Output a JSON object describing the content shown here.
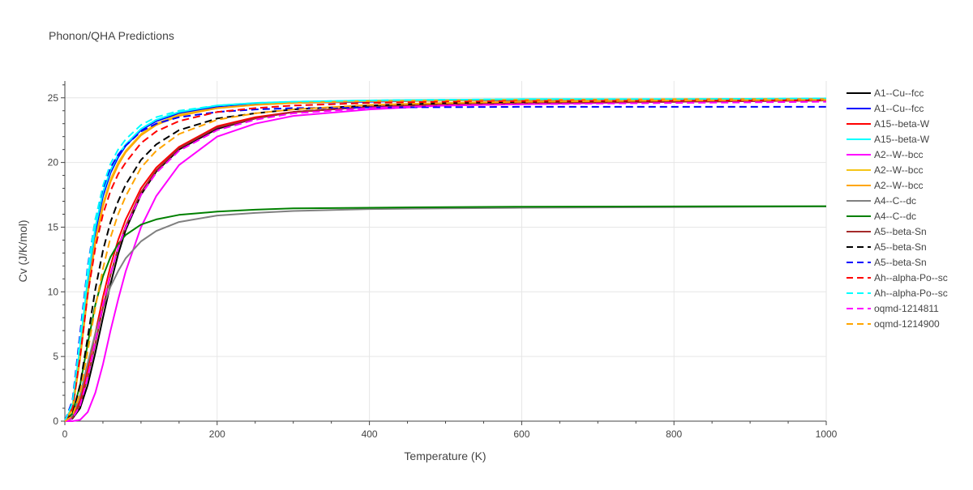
{
  "chart_data": {
    "type": "line",
    "title": "Phonon/QHA Predictions",
    "xlabel": "Temperature (K)",
    "ylabel": "Cv (J/K/mol)",
    "xlim": [
      0,
      1000
    ],
    "ylim": [
      0,
      26.3
    ],
    "xticks": [
      0,
      200,
      400,
      600,
      800,
      1000
    ],
    "yticks": [
      0,
      5,
      10,
      15,
      20,
      25
    ],
    "grid": true,
    "legend_position": "right",
    "series": [
      {
        "name": "A1--Cu--fcc",
        "color": "#000000",
        "dash": "solid",
        "x": [
          0,
          10,
          20,
          30,
          40,
          50,
          60,
          70,
          80,
          100,
          120,
          150,
          200,
          250,
          300,
          400,
          500,
          600,
          800,
          1000
        ],
        "y": [
          0,
          0.2,
          1.0,
          2.8,
          5.3,
          8.0,
          10.6,
          12.9,
          14.8,
          17.5,
          19.3,
          21.0,
          22.6,
          23.4,
          23.9,
          24.3,
          24.5,
          24.6,
          24.7,
          24.8
        ]
      },
      {
        "name": "A1--Cu--fcc",
        "color": "#0000ff",
        "dash": "solid",
        "x": [
          0,
          10,
          20,
          30,
          40,
          50,
          60,
          70,
          80,
          100,
          120,
          150,
          200,
          250,
          300,
          400,
          500,
          600,
          800,
          1000
        ],
        "y": [
          0,
          1.0,
          5.3,
          10.5,
          14.6,
          17.4,
          19.2,
          20.4,
          21.3,
          22.5,
          23.2,
          23.8,
          24.3,
          24.5,
          24.6,
          24.7,
          24.8,
          24.8,
          24.85,
          24.9
        ]
      },
      {
        "name": "A15--beta-W",
        "color": "#ff0000",
        "dash": "solid",
        "x": [
          0,
          10,
          20,
          30,
          40,
          50,
          60,
          70,
          80,
          100,
          120,
          150,
          200,
          250,
          300,
          400,
          500,
          600,
          800,
          1000
        ],
        "y": [
          0,
          0.3,
          1.6,
          4.0,
          6.8,
          9.6,
          12.0,
          14.0,
          15.6,
          18.0,
          19.6,
          21.2,
          22.8,
          23.5,
          23.9,
          24.3,
          24.5,
          24.6,
          24.7,
          24.8
        ]
      },
      {
        "name": "A15--beta-W",
        "color": "#00ffff",
        "dash": "solid",
        "x": [
          0,
          10,
          20,
          30,
          40,
          50,
          60,
          70,
          80,
          100,
          120,
          150,
          200,
          250,
          300,
          400,
          500,
          600,
          800,
          1000
        ],
        "y": [
          0,
          1.2,
          5.8,
          11.0,
          15.0,
          17.7,
          19.4,
          20.6,
          21.4,
          22.6,
          23.3,
          23.9,
          24.4,
          24.6,
          24.7,
          24.8,
          24.85,
          24.9,
          24.9,
          24.95
        ]
      },
      {
        "name": "A2--W--bcc",
        "color": "#ff00ff",
        "dash": "solid",
        "x": [
          0,
          10,
          20,
          30,
          40,
          50,
          60,
          70,
          80,
          100,
          120,
          150,
          200,
          250,
          300,
          400,
          500,
          600,
          800,
          1000
        ],
        "y": [
          0,
          0,
          0.1,
          0.7,
          2.2,
          4.4,
          7.0,
          9.4,
          11.6,
          15.0,
          17.4,
          19.8,
          22.0,
          23.0,
          23.6,
          24.1,
          24.4,
          24.5,
          24.7,
          24.8
        ]
      },
      {
        "name": "A2--W--bcc",
        "color": "#f5c518",
        "dash": "solid",
        "x": [
          0,
          10,
          20,
          30,
          40,
          50,
          60,
          70,
          80,
          100,
          120,
          150,
          200,
          250,
          300,
          400,
          500,
          600,
          800,
          1000
        ],
        "y": [
          0,
          1.0,
          5.0,
          10.0,
          14.0,
          16.8,
          18.7,
          20.0,
          20.9,
          22.2,
          23.0,
          23.7,
          24.2,
          24.45,
          24.6,
          24.75,
          24.8,
          24.85,
          24.9,
          24.9
        ]
      },
      {
        "name": "A2--W--bcc",
        "color": "#ffa500",
        "dash": "solid",
        "x": [
          0,
          10,
          20,
          30,
          40,
          50,
          60,
          70,
          80,
          100,
          120,
          150,
          200,
          250,
          300,
          400,
          500,
          600,
          800,
          1000
        ],
        "y": [
          0,
          0.9,
          4.8,
          9.8,
          13.8,
          16.6,
          18.5,
          19.8,
          20.8,
          22.1,
          22.9,
          23.6,
          24.2,
          24.45,
          24.6,
          24.75,
          24.8,
          24.85,
          24.9,
          24.9
        ]
      },
      {
        "name": "A4--C--dc",
        "color": "#808080",
        "dash": "solid",
        "x": [
          0,
          10,
          20,
          30,
          40,
          50,
          60,
          70,
          80,
          100,
          120,
          150,
          200,
          250,
          300,
          400,
          500,
          600,
          800,
          1000
        ],
        "y": [
          0,
          0.4,
          2.0,
          4.5,
          6.8,
          8.8,
          10.4,
          11.6,
          12.6,
          13.9,
          14.7,
          15.4,
          15.9,
          16.1,
          16.25,
          16.4,
          16.45,
          16.5,
          16.55,
          16.6
        ]
      },
      {
        "name": "A4--C--dc",
        "color": "#008000",
        "dash": "solid",
        "x": [
          0,
          10,
          20,
          30,
          40,
          50,
          60,
          70,
          80,
          100,
          120,
          150,
          200,
          250,
          300,
          400,
          500,
          600,
          800,
          1000
        ],
        "y": [
          0,
          0.6,
          2.8,
          6.0,
          9.0,
          11.2,
          12.7,
          13.7,
          14.4,
          15.2,
          15.6,
          15.95,
          16.2,
          16.35,
          16.45,
          16.5,
          16.55,
          16.58,
          16.6,
          16.62
        ]
      },
      {
        "name": "A5--beta-Sn",
        "color": "#a52a2a",
        "dash": "solid",
        "x": [
          0,
          10,
          20,
          30,
          40,
          50,
          60,
          70,
          80,
          100,
          120,
          150,
          200,
          250,
          300,
          400,
          500,
          600,
          800,
          1000
        ],
        "y": [
          0,
          0.25,
          1.3,
          3.4,
          6.0,
          8.8,
          11.3,
          13.4,
          15.1,
          17.7,
          19.4,
          21.1,
          22.7,
          23.4,
          23.9,
          24.3,
          24.5,
          24.6,
          24.7,
          24.8
        ]
      },
      {
        "name": "A5--beta-Sn",
        "color": "#000000",
        "dash": "dash",
        "x": [
          0,
          10,
          20,
          30,
          40,
          50,
          60,
          70,
          80,
          100,
          120,
          150,
          200,
          250,
          300,
          400,
          500,
          600,
          800,
          1000
        ],
        "y": [
          0,
          0.5,
          2.8,
          6.5,
          10.2,
          13.2,
          15.4,
          17.0,
          18.3,
          20.2,
          21.4,
          22.5,
          23.4,
          23.8,
          24.1,
          24.4,
          24.6,
          24.7,
          24.8,
          24.85
        ]
      },
      {
        "name": "A5--beta-Sn",
        "color": "#0000ff",
        "dash": "dash",
        "x": [
          0,
          10,
          20,
          30,
          40,
          50,
          60,
          70,
          80,
          100,
          120,
          150,
          200,
          250,
          300,
          400,
          500,
          600,
          800,
          1000
        ],
        "y": [
          0,
          1.6,
          6.8,
          12.0,
          15.6,
          18.0,
          19.6,
          20.6,
          21.3,
          22.4,
          23.0,
          23.5,
          23.9,
          24.1,
          24.2,
          24.25,
          24.28,
          24.3,
          24.3,
          24.3
        ]
      },
      {
        "name": "Ah--alpha-Po--sc",
        "color": "#ff0000",
        "dash": "dash",
        "x": [
          0,
          10,
          20,
          30,
          40,
          50,
          60,
          70,
          80,
          100,
          120,
          150,
          200,
          250,
          300,
          400,
          500,
          600,
          800,
          1000
        ],
        "y": [
          0,
          1.0,
          5.0,
          9.8,
          13.4,
          16.0,
          17.8,
          19.1,
          20.0,
          21.5,
          22.4,
          23.2,
          23.9,
          24.2,
          24.4,
          24.6,
          24.7,
          24.75,
          24.8,
          24.85
        ]
      },
      {
        "name": "Ah--alpha-Po--sc",
        "color": "#00ffff",
        "dash": "dash",
        "x": [
          0,
          10,
          20,
          30,
          40,
          50,
          60,
          70,
          80,
          100,
          120,
          150,
          200,
          250,
          300,
          400,
          500,
          600,
          800,
          1000
        ],
        "y": [
          0,
          1.4,
          6.4,
          11.8,
          15.6,
          18.2,
          19.9,
          21.0,
          21.8,
          22.9,
          23.5,
          24.0,
          24.4,
          24.6,
          24.7,
          24.8,
          24.85,
          24.9,
          24.9,
          24.95
        ]
      },
      {
        "name": "oqmd-1214811",
        "color": "#ff00ff",
        "dash": "dash",
        "x": [
          0,
          10,
          20,
          30,
          40,
          50,
          60,
          70,
          80,
          100,
          120,
          150,
          200,
          250,
          300,
          400,
          500,
          600,
          800,
          1000
        ],
        "y": [
          0,
          0.2,
          1.2,
          3.4,
          6.2,
          9.0,
          11.4,
          13.4,
          15.0,
          17.5,
          19.2,
          20.9,
          22.5,
          23.3,
          23.8,
          24.2,
          24.4,
          24.5,
          24.6,
          24.7
        ]
      },
      {
        "name": "oqmd-1214900",
        "color": "#ffa500",
        "dash": "dash",
        "x": [
          0,
          10,
          20,
          30,
          40,
          50,
          60,
          70,
          80,
          100,
          120,
          150,
          200,
          250,
          300,
          400,
          500,
          600,
          800,
          1000
        ],
        "y": [
          0,
          0.4,
          2.2,
          5.4,
          8.8,
          11.8,
          14.2,
          16.0,
          17.4,
          19.6,
          20.9,
          22.2,
          23.3,
          23.8,
          24.1,
          24.45,
          24.6,
          24.7,
          24.8,
          24.85
        ]
      }
    ]
  }
}
